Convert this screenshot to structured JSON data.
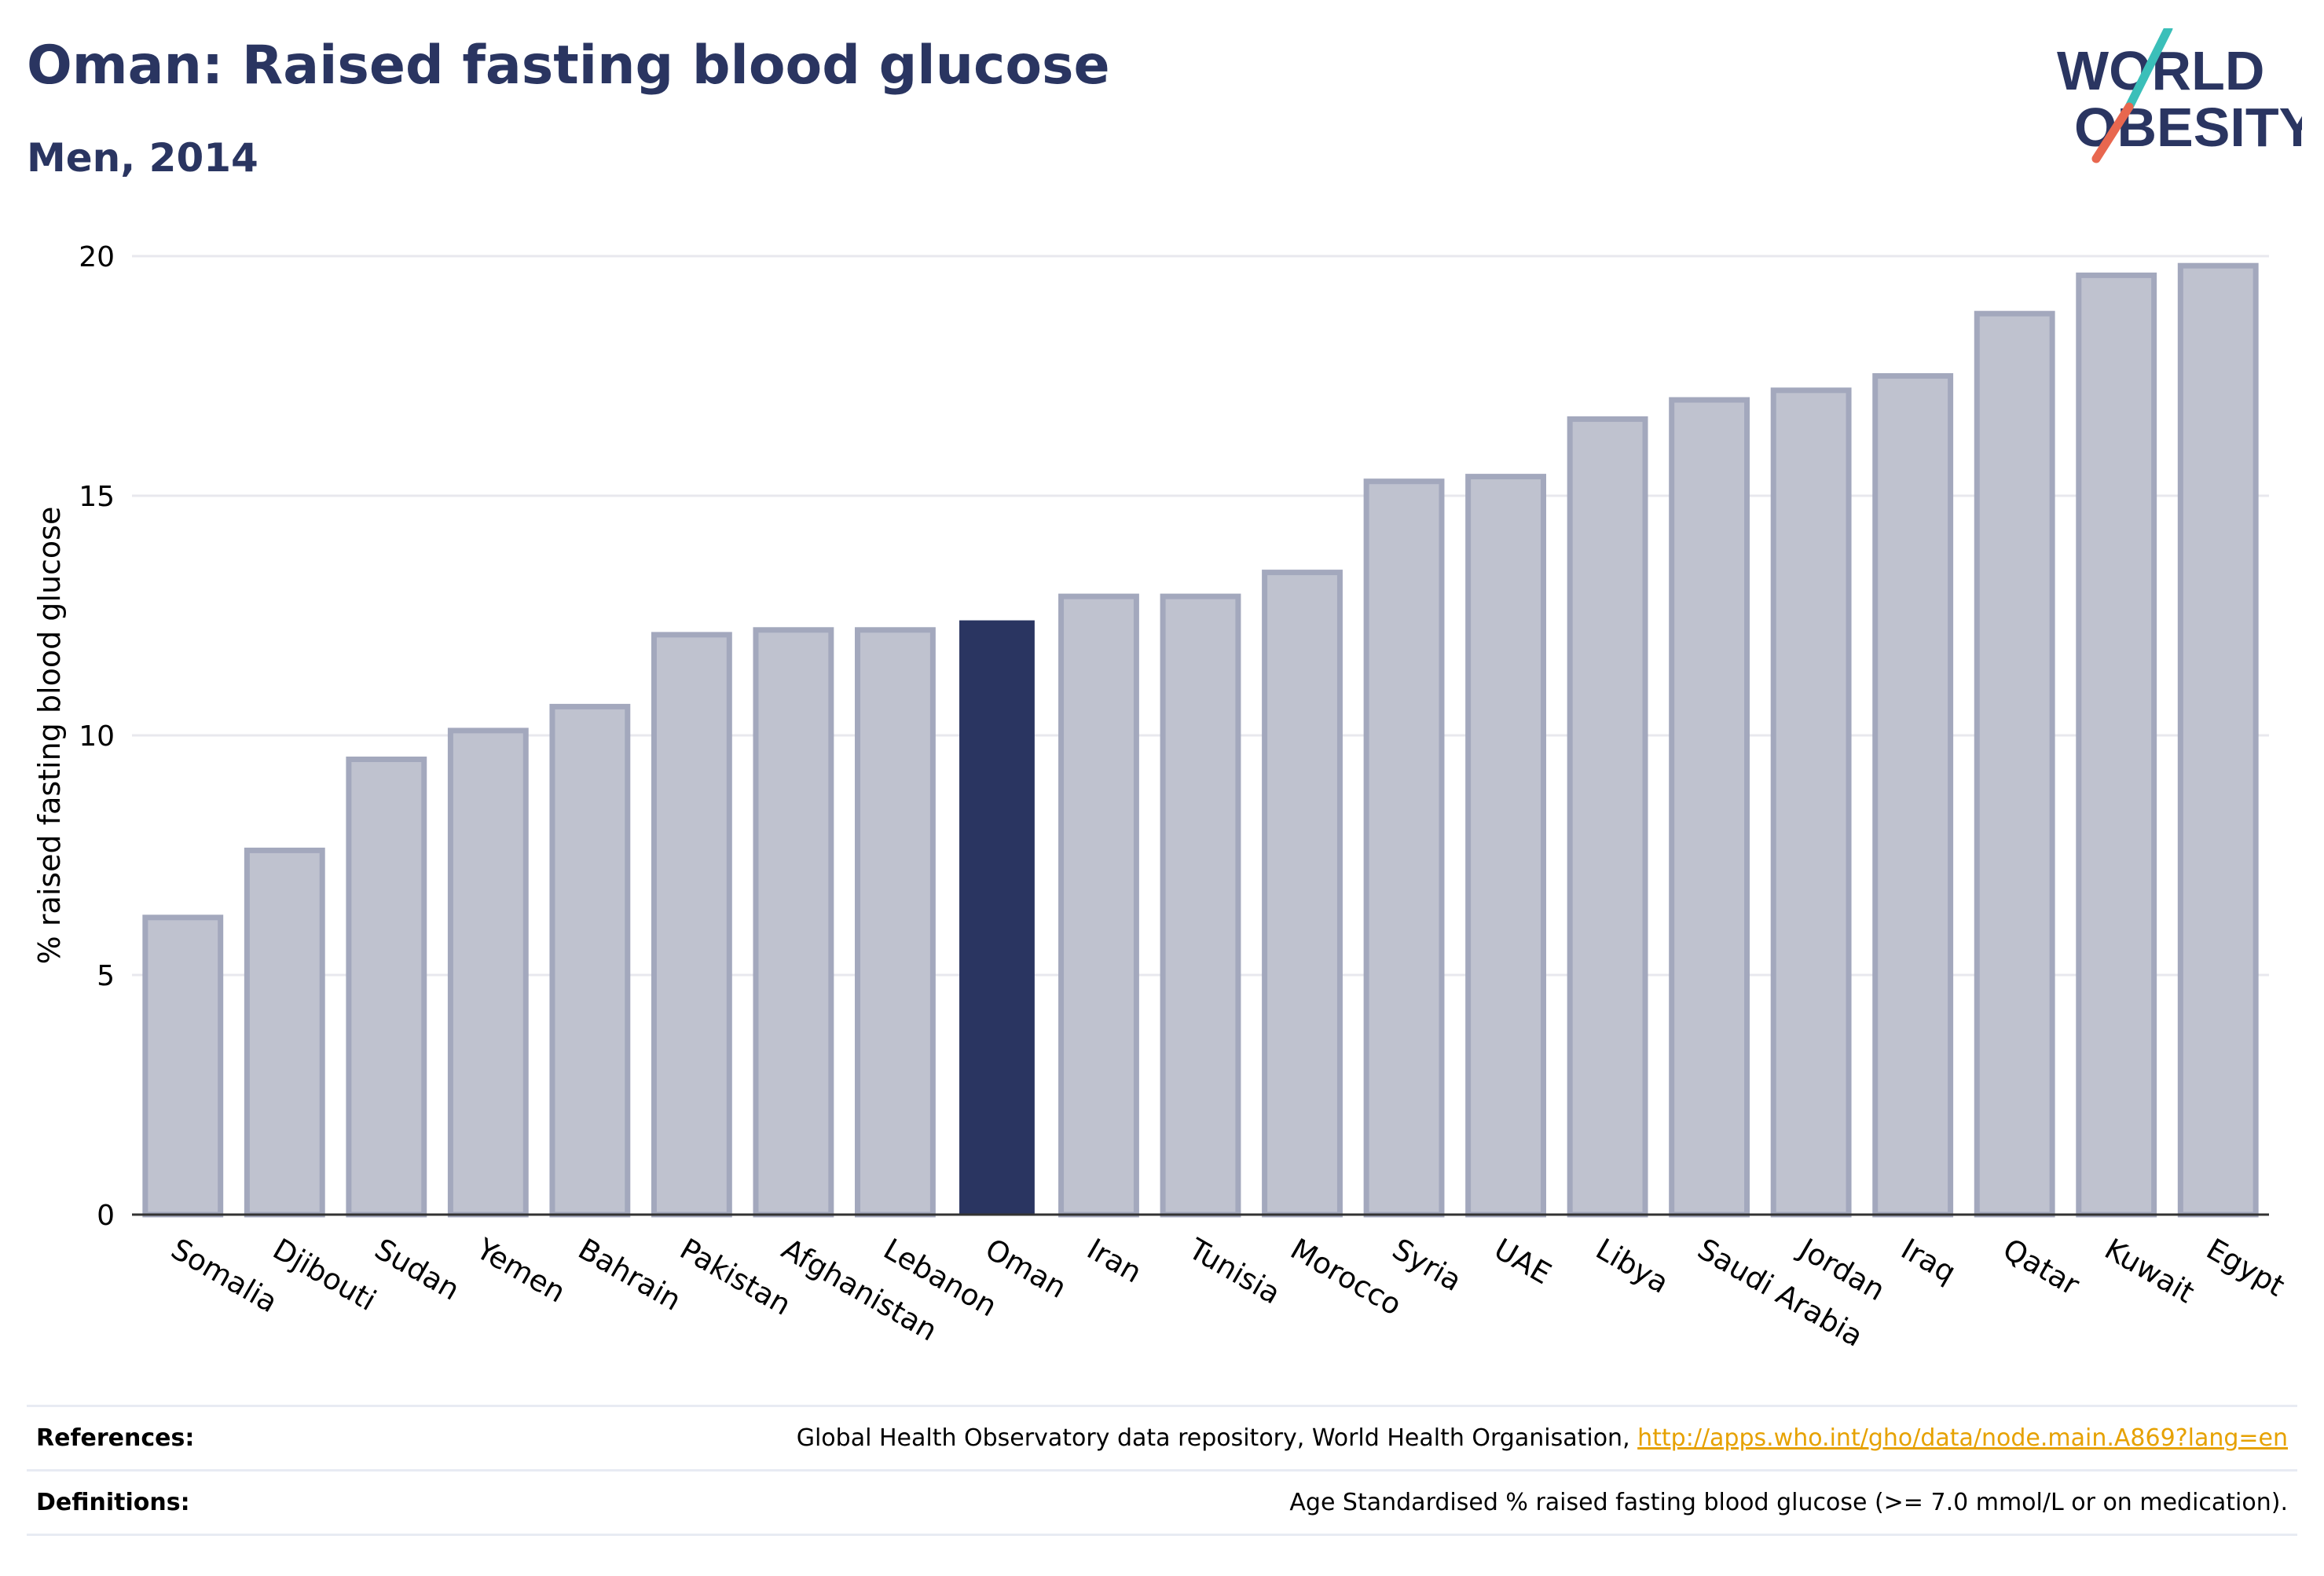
{
  "header": {
    "title": "Oman: Raised fasting blood glucose",
    "subtitle": "Men, 2014"
  },
  "logo": {
    "line1": "WORLD",
    "line2": "OBESITY",
    "text_color": "#2a3561",
    "slash_colors": [
      "#3bbfb9",
      "#e8674f"
    ]
  },
  "chart_data": {
    "type": "bar",
    "categories": [
      "Somalia",
      "Djibouti",
      "Sudan",
      "Yemen",
      "Bahrain",
      "Pakistan",
      "Afghanistan",
      "Lebanon",
      "Oman",
      "Iran",
      "Tunisia",
      "Morocco",
      "Syria",
      "UAE",
      "Libya",
      "Saudi Arabia",
      "Jordan",
      "Iraq",
      "Qatar",
      "Kuwait",
      "Egypt"
    ],
    "values": [
      6.2,
      7.6,
      9.5,
      10.1,
      10.6,
      12.1,
      12.2,
      12.2,
      12.4,
      12.9,
      12.9,
      13.4,
      15.3,
      15.4,
      16.6,
      17.0,
      17.2,
      17.5,
      18.8,
      19.6,
      19.8
    ],
    "highlight": "Oman",
    "title": "Oman: Raised fasting blood glucose",
    "ylabel": "% raised fasting blood glucose",
    "xlabel": "",
    "ylim": [
      0,
      20
    ],
    "yticks": [
      0,
      5,
      10,
      15,
      20
    ],
    "grid": true,
    "colors": {
      "bar": "#bfc2cf",
      "bar_edge": "#a3a8bd",
      "highlight": "#2a3561",
      "grid": "#e8e8ee",
      "axis": "#333333"
    }
  },
  "footer": {
    "references_label": "References:",
    "references_text": "Global Health Observatory data repository, World Health Organisation, ",
    "references_link": "http://apps.who.int/gho/data/node.main.A869?lang=en",
    "definitions_label": "Definitions:",
    "definitions_text": "Age Standardised % raised fasting blood glucose (>= 7.0 mmol/L or on medication)."
  }
}
